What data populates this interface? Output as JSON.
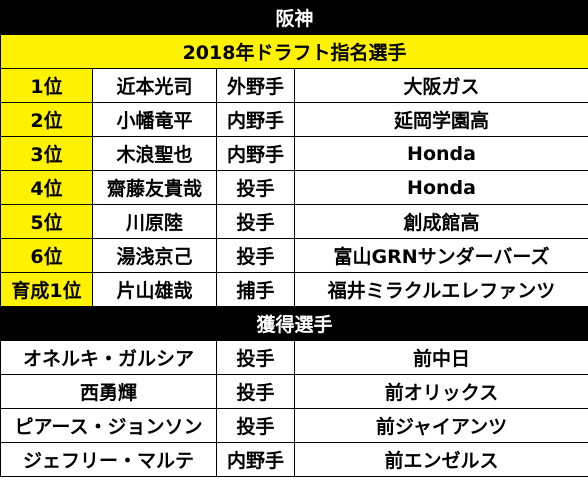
{
  "team": "阪神",
  "draft_title": "2018年ドラフト指名選手",
  "draft_picks": [
    {
      "round": "1位",
      "name": "近本光司",
      "position": "外野手",
      "from": "大阪ガス"
    },
    {
      "round": "2位",
      "name": "小幡竜平",
      "position": "内野手",
      "from": "延岡学園高"
    },
    {
      "round": "3位",
      "name": "木浪聖也",
      "position": "内野手",
      "from": "Honda"
    },
    {
      "round": "4位",
      "name": "齋藤友貴哉",
      "position": "投手",
      "from": "Honda"
    },
    {
      "round": "5位",
      "name": "川原陸",
      "position": "投手",
      "from": "創成館高"
    },
    {
      "round": "6位",
      "name": "湯浅京己",
      "position": "投手",
      "from": "富山GRNサンダーバーズ"
    },
    {
      "round": "育成1位",
      "name": "片山雄哉",
      "position": "捕手",
      "from": "福井ミラクルエレファンツ"
    }
  ],
  "acquired_title": "獲得選手",
  "acquired_players": [
    {
      "name": "オネルキ・ガルシア",
      "position": "投手",
      "from": "前中日"
    },
    {
      "name": "西勇輝",
      "position": "投手",
      "from": "前オリックス"
    },
    {
      "name": "ピアース・ジョンソン",
      "position": "投手",
      "from": "前ジャイアンツ"
    },
    {
      "name": "ジェフリー・マルテ",
      "position": "内野手",
      "from": "前エンゼルス"
    }
  ],
  "colors": {
    "header_black": "#000000",
    "header_yellow": "#fff200"
  }
}
